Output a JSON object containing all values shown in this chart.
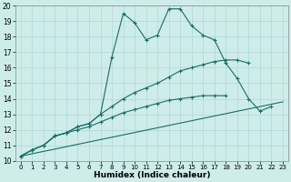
{
  "xlabel": "Humidex (Indice chaleur)",
  "background_color": "#ceecea",
  "grid_color": "#aed8d4",
  "line_color": "#1a6e64",
  "xlim": [
    -0.5,
    23.5
  ],
  "ylim": [
    10,
    20
  ],
  "xticks": [
    0,
    1,
    2,
    3,
    4,
    5,
    6,
    7,
    8,
    9,
    10,
    11,
    12,
    13,
    14,
    15,
    16,
    17,
    18,
    19,
    20,
    21,
    22,
    23
  ],
  "yticks": [
    10,
    11,
    12,
    13,
    14,
    15,
    16,
    17,
    18,
    19,
    20
  ],
  "series": [
    {
      "x": [
        0,
        1,
        2,
        3,
        4,
        5,
        6,
        7,
        8,
        9,
        10,
        11,
        12,
        13,
        14,
        15,
        16,
        17,
        18,
        19,
        20,
        21,
        22
      ],
      "y": [
        10.3,
        10.7,
        11.0,
        11.6,
        11.8,
        12.2,
        12.4,
        13.0,
        16.7,
        19.5,
        18.9,
        17.8,
        18.1,
        19.8,
        19.8,
        18.7,
        18.1,
        17.8,
        16.3,
        15.3,
        14.0,
        13.2,
        13.5
      ]
    },
    {
      "x": [
        0,
        1,
        2,
        3,
        4,
        5,
        6,
        7,
        8,
        9,
        10,
        11,
        12,
        13,
        14,
        15,
        16,
        17,
        18,
        19,
        20
      ],
      "y": [
        10.3,
        10.7,
        11.0,
        11.6,
        11.8,
        12.2,
        12.4,
        13.0,
        13.5,
        14.0,
        14.4,
        14.7,
        15.0,
        15.4,
        15.8,
        16.0,
        16.2,
        16.4,
        16.5,
        16.5,
        16.3
      ]
    },
    {
      "x": [
        0,
        1,
        2,
        3,
        4,
        5,
        6,
        7,
        8,
        9,
        10,
        11,
        12,
        13,
        14,
        15,
        16,
        17,
        18
      ],
      "y": [
        10.3,
        10.7,
        11.0,
        11.6,
        11.8,
        12.0,
        12.2,
        12.5,
        12.8,
        13.1,
        13.3,
        13.5,
        13.7,
        13.9,
        14.0,
        14.1,
        14.2,
        14.2,
        14.2
      ]
    },
    {
      "x": [
        0,
        23
      ],
      "y": [
        10.3,
        13.8
      ]
    }
  ]
}
